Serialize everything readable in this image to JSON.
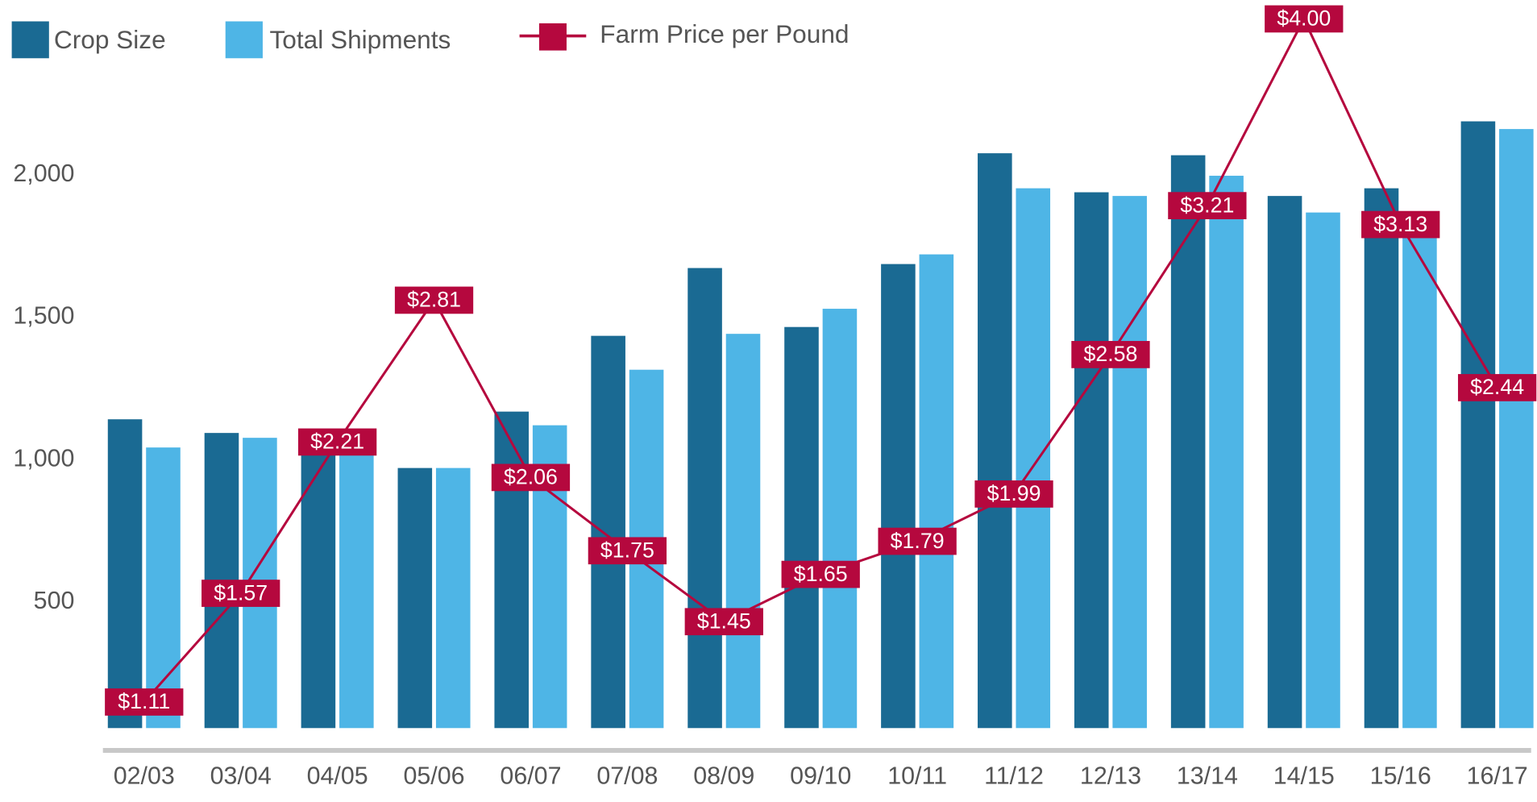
{
  "chart_data": {
    "type": "bar-line",
    "categories": [
      "02/03",
      "03/04",
      "04/05",
      "05/06",
      "06/07",
      "07/08",
      "08/09",
      "09/10",
      "10/11",
      "11/12",
      "12/13",
      "13/14",
      "14/15",
      "15/16",
      "16/17"
    ],
    "series": [
      {
        "name": "Crop Size",
        "color": "#1a6a93",
        "type": "bar",
        "values": [
          1142,
          1094,
          1057,
          971,
          1169,
          1435,
          1673,
          1466,
          1687,
          2076,
          1939,
          2069,
          1926,
          1953,
          2188
        ]
      },
      {
        "name": "Total Shipments",
        "color": "#4eb5e6",
        "type": "bar",
        "values": [
          1043,
          1077,
          1043,
          971,
          1121,
          1316,
          1442,
          1530,
          1721,
          1953,
          1926,
          1997,
          1868,
          1868,
          2161
        ]
      },
      {
        "name": "Farm Price per Pound",
        "color": "#b5083e",
        "type": "line",
        "axis": "y2",
        "values": [
          1.11,
          1.57,
          2.21,
          2.81,
          2.06,
          1.75,
          1.45,
          1.65,
          1.79,
          1.99,
          2.58,
          3.21,
          4.0,
          3.13,
          2.44
        ],
        "value_labels": [
          "$1.11",
          "$1.57",
          "$2.21",
          "$2.81",
          "$2.06",
          "$1.75",
          "$1.45",
          "$1.65",
          "$1.79",
          "$1.99",
          "$2.58",
          "$3.21",
          "$4.00",
          "$3.13",
          "$2.44"
        ]
      }
    ],
    "ylim": [
      0,
      2614
    ],
    "yticks": [
      500,
      {
        "value": 1000,
        "label": "1,000"
      },
      {
        "value": 1500,
        "label": "1,500"
      },
      {
        "value": 2000,
        "label": "2,000"
      }
    ],
    "y2lim": [
      0.93,
      4.08
    ],
    "legend": "top-left"
  }
}
